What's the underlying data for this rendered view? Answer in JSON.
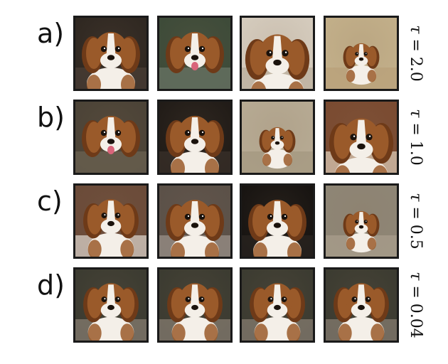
{
  "rows": [
    {
      "label": "a)",
      "tau": "2.0",
      "images": [
        {
          "subject": "cavalier-king-charles-spaniel",
          "background": "#2d2620",
          "floor": "#4a3e36",
          "pose": "portrait"
        },
        {
          "subject": "cavalier-king-charles-spaniel",
          "background": "#3c4a38",
          "floor": "#6a7466",
          "pose": "portrait-tongue"
        },
        {
          "subject": "cavalier-king-charles-spaniel",
          "background": "#d6cdbf",
          "floor": "#b9ad9c",
          "pose": "lying-close"
        },
        {
          "subject": "cavalier-king-charles-spaniel",
          "background": "#c3b08a",
          "floor": "#b8a07a",
          "pose": "lying-far"
        }
      ]
    },
    {
      "label": "b)",
      "tau": "1.0",
      "images": [
        {
          "subject": "cavalier-king-charles-spaniel",
          "background": "#4a4236",
          "floor": "#6b6252",
          "pose": "portrait-tongue"
        },
        {
          "subject": "cavalier-king-charles-spaniel",
          "background": "#1f1a16",
          "floor": "#3a302a",
          "pose": "portrait"
        },
        {
          "subject": "cavalier-king-charles-spaniel",
          "background": "#b7ab94",
          "floor": "#a49880",
          "pose": "sitting-far"
        },
        {
          "subject": "cavalier-king-charles-spaniel",
          "background": "#7a4a30",
          "floor": "#d9c8b4",
          "pose": "lying-close"
        }
      ]
    },
    {
      "label": "c)",
      "tau": "0.5",
      "images": [
        {
          "subject": "cavalier-king-charles-spaniel",
          "background": "#6a4a38",
          "floor": "#d8d0c8",
          "pose": "lying-front"
        },
        {
          "subject": "cavalier-king-charles-spaniel",
          "background": "#5a5048",
          "floor": "#9a9088",
          "pose": "portrait"
        },
        {
          "subject": "cavalier-king-charles-spaniel",
          "background": "#151210",
          "floor": "#2a2420",
          "pose": "portrait"
        },
        {
          "subject": "cavalier-king-charles-spaniel",
          "background": "#8e8676",
          "floor": "#a89e8c",
          "pose": "sitting-far"
        }
      ]
    },
    {
      "label": "d)",
      "tau": "0.04",
      "images": [
        {
          "subject": "cavalier-king-charles-spaniel",
          "background": "#3a3a30",
          "floor": "#857c70",
          "pose": "sitting-front"
        },
        {
          "subject": "cavalier-king-charles-spaniel",
          "background": "#3a3a30",
          "floor": "#857c70",
          "pose": "sitting-front"
        },
        {
          "subject": "cavalier-king-charles-spaniel",
          "background": "#3a3a30",
          "floor": "#857c70",
          "pose": "sitting-front"
        },
        {
          "subject": "cavalier-king-charles-spaniel",
          "background": "#3a3a30",
          "floor": "#857c70",
          "pose": "sitting-front"
        }
      ]
    }
  ],
  "tau_symbol": "τ",
  "colors": {
    "fur_brown": "#9a5a2a",
    "fur_dark": "#6e3a18",
    "fur_white": "#f4efe8",
    "tile_border": "#1a1a1a"
  }
}
